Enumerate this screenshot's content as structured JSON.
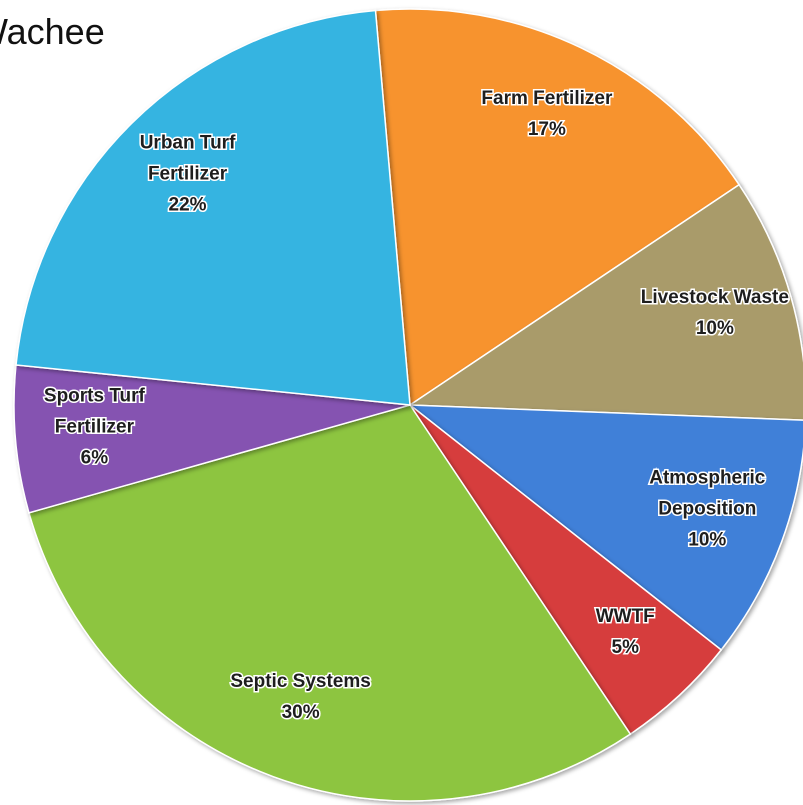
{
  "chart_data": {
    "type": "pie",
    "title": "Wachee",
    "categories": [
      "Farm Fertilizer",
      "Livestock Waste",
      "Atmospheric Deposition",
      "WWTF",
      "Septic Systems",
      "Sports Turf Fertilizer",
      "Urban Turf Fertilizer"
    ],
    "values": [
      17,
      10,
      10,
      5,
      30,
      6,
      22
    ],
    "value_labels": [
      "17%",
      "10%",
      "10%",
      "5%",
      "30%",
      "6%",
      "22%"
    ],
    "colors": [
      "#f7932e",
      "#a99b6b",
      "#3f80d8",
      "#d63c3c",
      "#8dc540",
      "#8552b1",
      "#35b4e1"
    ]
  }
}
